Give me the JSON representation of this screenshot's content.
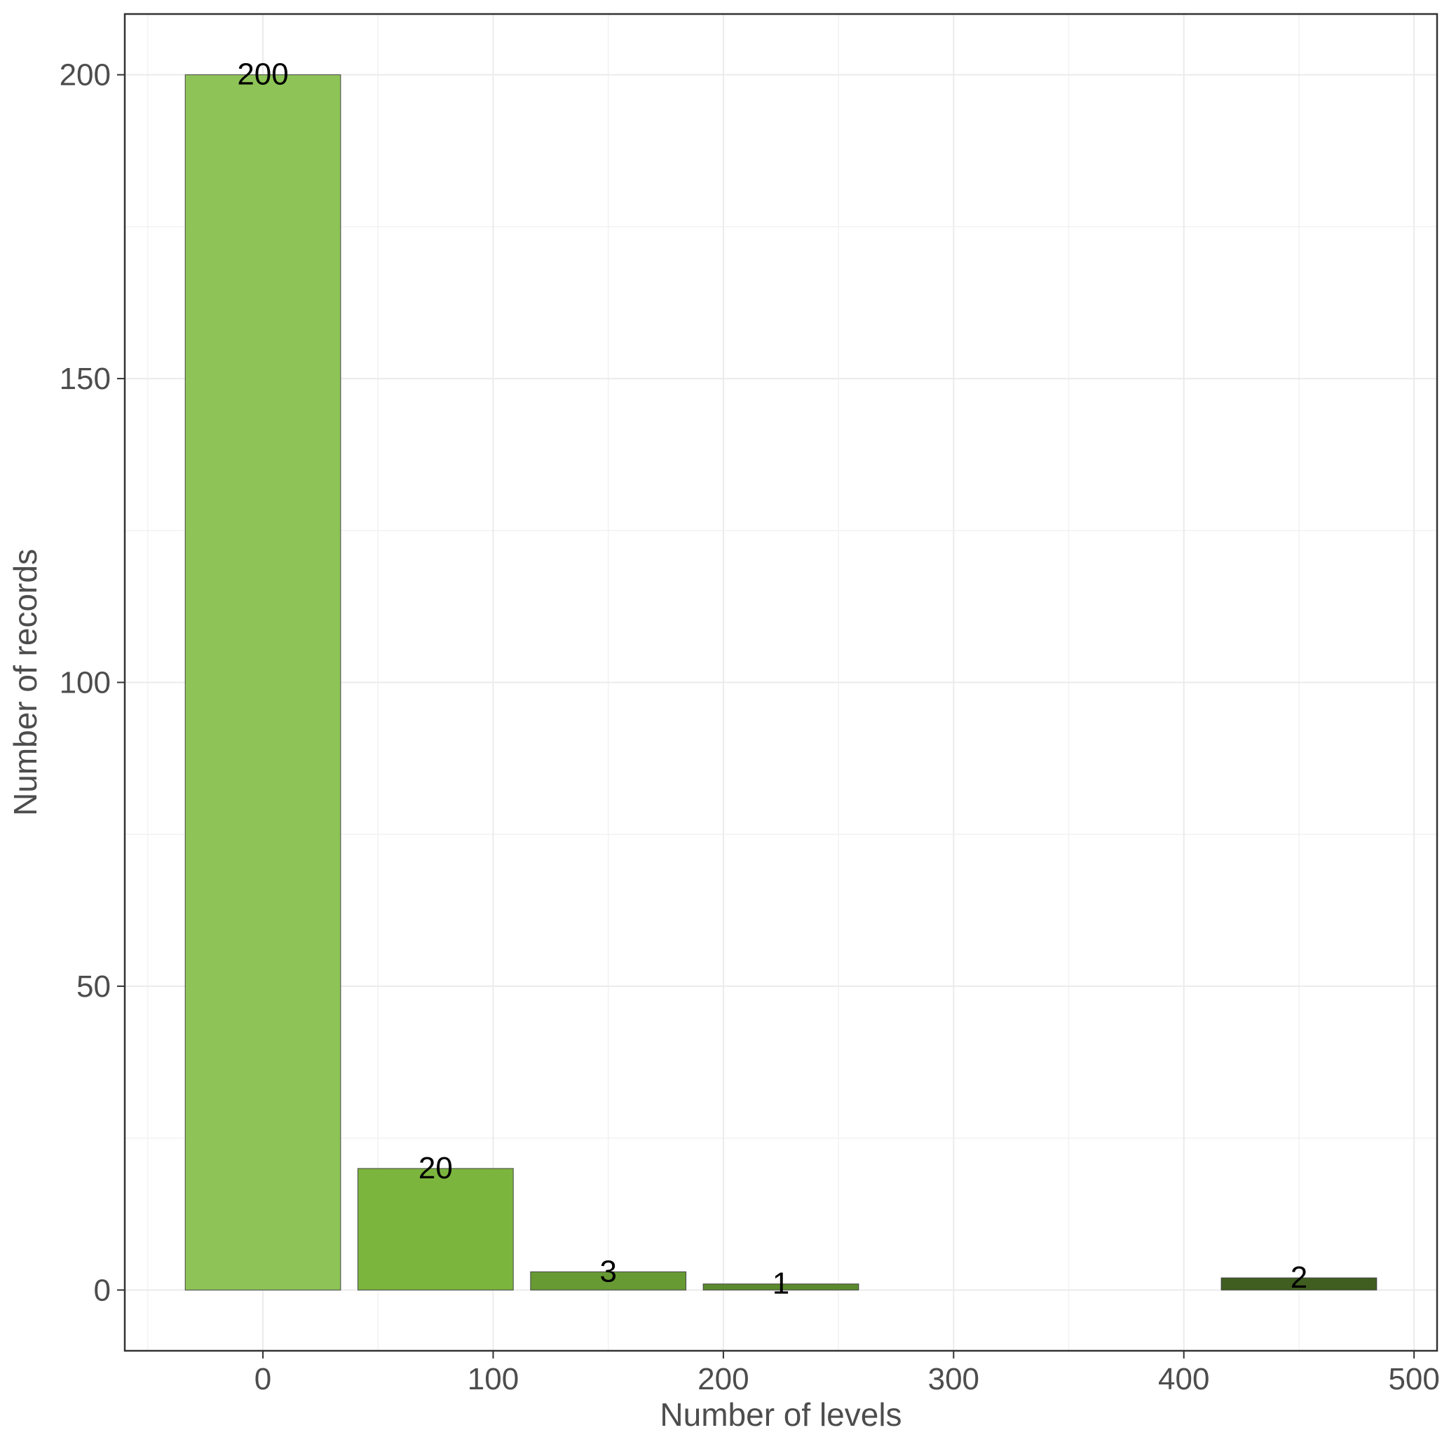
{
  "chart_data": {
    "type": "bar",
    "xlabel": "Number of levels",
    "ylabel": "Number of records",
    "xlim": [
      -60,
      510
    ],
    "ylim": [
      -10,
      210
    ],
    "x_ticks": [
      0,
      100,
      200,
      300,
      400,
      500
    ],
    "y_ticks": [
      0,
      50,
      100,
      150,
      200
    ],
    "grid": true,
    "legend": "none",
    "bars": [
      {
        "x": 0,
        "value": 200,
        "label": "200",
        "color": "#8ec457"
      },
      {
        "x": 75,
        "value": 20,
        "label": "20",
        "color": "#7cb53e"
      },
      {
        "x": 150,
        "value": 3,
        "label": "3",
        "color": "#679a33"
      },
      {
        "x": 225,
        "value": 1,
        "label": "1",
        "color": "#5a8a2e"
      },
      {
        "x": 450,
        "value": 2,
        "label": "2",
        "color": "#3f5e20"
      }
    ],
    "bar_width": 67.5
  }
}
